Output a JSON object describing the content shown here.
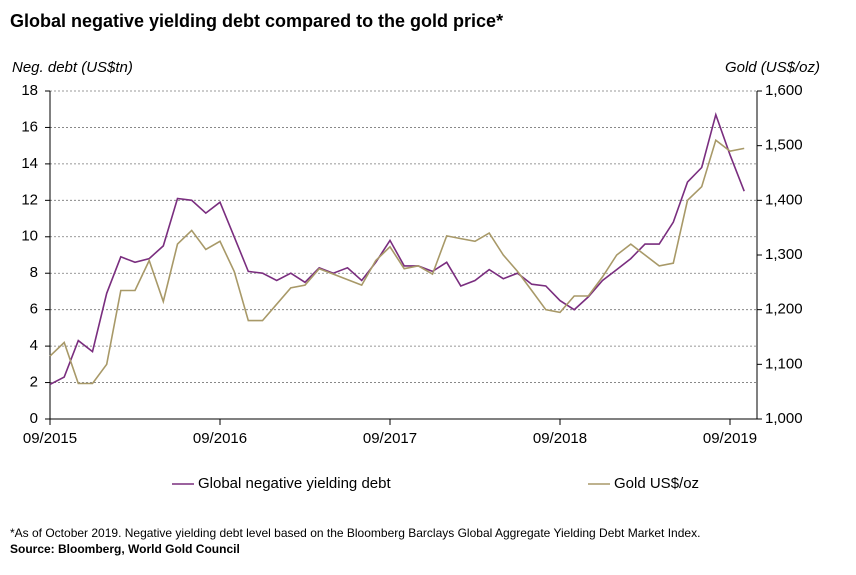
{
  "chart_data": {
    "type": "line",
    "title": "Global negative yielding debt compared to the gold price*",
    "ylabel": "Neg. debt (US$tn)",
    "y2label": "Gold (US$/oz)",
    "x": [
      "09/2015",
      "10/2015",
      "11/2015",
      "12/2015",
      "01/2016",
      "02/2016",
      "03/2016",
      "04/2016",
      "05/2016",
      "06/2016",
      "07/2016",
      "08/2016",
      "09/2016",
      "10/2016",
      "11/2016",
      "12/2016",
      "01/2017",
      "02/2017",
      "03/2017",
      "04/2017",
      "05/2017",
      "06/2017",
      "07/2017",
      "08/2017",
      "09/2017",
      "10/2017",
      "11/2017",
      "12/2017",
      "01/2018",
      "02/2018",
      "03/2018",
      "04/2018",
      "05/2018",
      "06/2018",
      "07/2018",
      "08/2018",
      "09/2018",
      "10/2018",
      "11/2018",
      "12/2018",
      "01/2019",
      "02/2019",
      "03/2019",
      "04/2019",
      "05/2019",
      "06/2019",
      "07/2019",
      "08/2019",
      "09/2019",
      "10/2019"
    ],
    "xticks": [
      "09/2015",
      "09/2016",
      "09/2017",
      "09/2018",
      "09/2019"
    ],
    "series": [
      {
        "name": "Global negative yielding debt",
        "color": "#7a2e7f",
        "axis": "y",
        "values": [
          1.9,
          2.3,
          4.3,
          3.7,
          6.9,
          8.9,
          8.6,
          8.8,
          9.5,
          12.1,
          12.0,
          11.3,
          11.9,
          10.0,
          8.1,
          8.0,
          7.6,
          8.0,
          7.5,
          8.3,
          8.0,
          8.3,
          7.6,
          8.6,
          9.8,
          8.4,
          8.4,
          8.1,
          8.6,
          7.3,
          7.6,
          8.2,
          7.7,
          8.0,
          7.4,
          7.3,
          6.5,
          6.0,
          6.7,
          7.6,
          8.2,
          8.8,
          9.6,
          9.6,
          10.8,
          13.0,
          13.8,
          16.7,
          14.5,
          12.5
        ]
      },
      {
        "name": "Gold US$/oz",
        "color": "#a89968",
        "axis": "y2",
        "values": [
          1115,
          1140,
          1065,
          1065,
          1100,
          1235,
          1235,
          1290,
          1215,
          1320,
          1345,
          1310,
          1325,
          1270,
          1180,
          1180,
          1210,
          1240,
          1245,
          1275,
          1265,
          1255,
          1245,
          1290,
          1315,
          1275,
          1280,
          1265,
          1335,
          1330,
          1325,
          1340,
          1300,
          1270,
          1235,
          1200,
          1195,
          1225,
          1225,
          1260,
          1300,
          1320,
          1300,
          1280,
          1285,
          1400,
          1425,
          1510,
          1490,
          1495
        ]
      }
    ],
    "ylim": [
      0,
      18
    ],
    "yticks": [
      0,
      2,
      4,
      6,
      8,
      10,
      12,
      14,
      16,
      18
    ],
    "y2lim": [
      1000,
      1600
    ],
    "y2ticks": [
      {
        "value": 1000,
        "label": "1,000"
      },
      {
        "value": 1100,
        "label": "1,100"
      },
      {
        "value": 1200,
        "label": "1,200"
      },
      {
        "value": 1300,
        "label": "1,300"
      },
      {
        "value": 1400,
        "label": "1,400"
      },
      {
        "value": 1500,
        "label": "1,500"
      },
      {
        "value": 1600,
        "label": "1,600"
      }
    ],
    "grid": true,
    "legend": "bottom",
    "footnote": "*As of October 2019. Negative yielding debt level based on the Bloomberg Barclays Global Aggregate Yielding Debt Market Index.",
    "source": "Source: Bloomberg, World Gold Council"
  }
}
